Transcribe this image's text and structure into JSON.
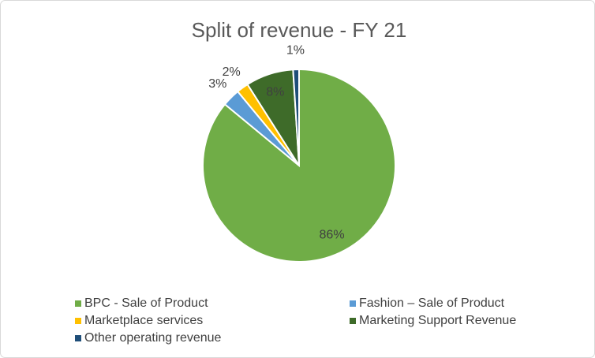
{
  "chart_data": {
    "type": "pie",
    "title": "Split of revenue - FY 21",
    "categories": [
      "BPC - Sale of Product",
      "Fashion – Sale of Product",
      "Marketplace services",
      "Marketing Support Revenue",
      "Other operating revenue"
    ],
    "values": [
      86,
      3,
      2,
      8,
      1
    ],
    "value_labels": [
      "86%",
      "3%",
      "2%",
      "8%",
      "1%"
    ],
    "colors": [
      "#70ad47",
      "#5b9bd5",
      "#ffc000",
      "#3e6b29",
      "#1f4e79"
    ],
    "legend": "bottom"
  }
}
